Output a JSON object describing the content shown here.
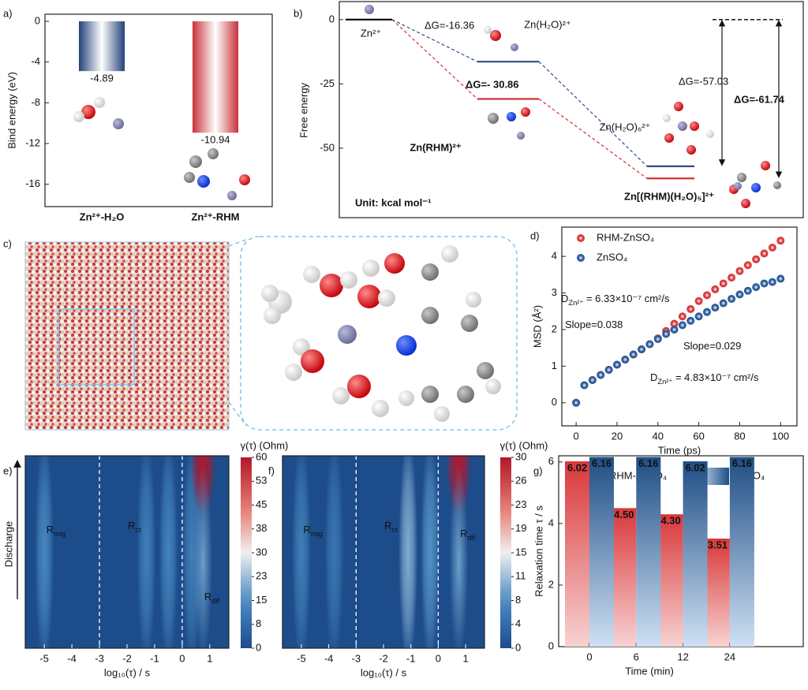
{
  "panel_labels": [
    "a)",
    "b)",
    "c)",
    "d)",
    "e)",
    "f)",
    "g)"
  ],
  "chart_data": [
    {
      "type": "bar",
      "ylabel": "Bind energy (eV)",
      "categories": [
        "Zn²⁺-H₂O",
        "Zn²⁺-RHM"
      ],
      "values": [
        -4.89,
        -10.94
      ],
      "colors": [
        "#24417a",
        "#c8323a"
      ],
      "ylim": [
        -18.2,
        0.7
      ],
      "yticks": [
        0,
        -4,
        -8,
        -12,
        -16
      ]
    },
    {
      "type": "energy",
      "ylabel": "Free energy",
      "ylim": [
        -77,
        7
      ],
      "yticks": [
        0,
        -25,
        -50
      ],
      "categories": [
        "Zn²⁺",
        "Zn(H₂O)²⁺",
        "Zn(RHM)²⁺",
        "Zn(H₂O)₆²⁺",
        "Zn[(RHM)(H₂O)₅]²⁺"
      ],
      "values": [
        0,
        -16.36,
        -30.86,
        -57.03,
        -61.74
      ],
      "colors": [
        "#000000",
        "#2b4d86",
        "#d0323a",
        "#2b4d86",
        "#d0323a"
      ],
      "annotations": [
        "ΔG=-16.36",
        "ΔG=- 30.86",
        "ΔG=-57.03",
        "ΔG=-61.74"
      ],
      "unit": "Unit: kcal mol⁻¹"
    },
    {
      "type": "scatter",
      "xlabel": "Time (ps)",
      "ylabel": "MSD (Å²)",
      "x": [
        0,
        4,
        8,
        12,
        16,
        20,
        24,
        28,
        32,
        36,
        40,
        44,
        48,
        52,
        56,
        60,
        64,
        68,
        72,
        76,
        80,
        84,
        88,
        92,
        96,
        100
      ],
      "series": [
        {
          "name": "RHM-ZnSO₄",
          "color": "#d9383a",
          "values": [
            0,
            0.48,
            0.62,
            0.76,
            0.9,
            1.04,
            1.18,
            1.32,
            1.46,
            1.6,
            1.76,
            1.96,
            2.16,
            2.36,
            2.56,
            2.78,
            2.94,
            3.1,
            3.26,
            3.42,
            3.6,
            3.76,
            3.92,
            4.08,
            4.24,
            4.43
          ]
        },
        {
          "name": "ZnSO₄",
          "color": "#2a5a9a",
          "values": [
            0,
            0.48,
            0.62,
            0.76,
            0.9,
            1.04,
            1.18,
            1.32,
            1.46,
            1.6,
            1.74,
            1.88,
            2.0,
            2.12,
            2.24,
            2.36,
            2.48,
            2.6,
            2.72,
            2.84,
            2.96,
            3.06,
            3.16,
            3.26,
            3.3,
            3.39
          ]
        }
      ],
      "xlim": [
        -7,
        108
      ],
      "ylim": [
        -0.63,
        4.8
      ],
      "xticks": [
        0,
        20,
        40,
        60,
        80,
        100
      ],
      "yticks": [
        0,
        1,
        2,
        3,
        4
      ],
      "annotations": [
        {
          "main": "D",
          "sub": "Zn²⁺",
          "rest": " = 6.33×10⁻⁷ cm²/s"
        },
        {
          "main": "Slope=0.038"
        },
        {
          "main": "Slope=0.029"
        },
        {
          "main": "D",
          "sub": "Zn²⁺",
          "rest": " = 4.83×10⁻⁷ cm²/s"
        }
      ]
    },
    {
      "type": "heatmap",
      "colorbar_label": "γ(τ) (Ohm)",
      "xlabel": "log₁₀(τ) / s",
      "ylabel": "Discharge",
      "xlim": [
        -5.69,
        1.69
      ],
      "xticks": [
        -5,
        -4,
        -3,
        -2,
        -1,
        0,
        1
      ],
      "dividers": [
        -3,
        0
      ],
      "regions": [
        {
          "main": "R",
          "sub": "mig"
        },
        {
          "main": "R",
          "sub": "ct"
        },
        {
          "main": "R",
          "sub": "dif"
        }
      ],
      "clim": [
        0,
        60
      ],
      "cticks": [
        0,
        {
          "value": 7.5,
          "label": "8"
        },
        15,
        {
          "value": 22.5,
          "label": "23"
        },
        30,
        {
          "value": 37.5,
          "label": "38"
        },
        45,
        {
          "value": 52.5,
          "label": "53"
        },
        60
      ],
      "peaks": {
        "x": [
          -5,
          -1.3,
          -0.5,
          0.35,
          0.75
        ],
        "values": [
          14,
          12,
          13,
          12,
          60
        ]
      }
    },
    {
      "type": "heatmap",
      "colorbar_label": "γ(τ) (Ohm)",
      "xlabel": "log₁₀(τ) / s",
      "xlim": [
        -5.69,
        1.69
      ],
      "xticks": [
        -5,
        -4,
        -3,
        -2,
        -1,
        0,
        1
      ],
      "dividers": [
        -3,
        0
      ],
      "regions": [
        {
          "main": "R",
          "sub": "mig"
        },
        {
          "main": "R",
          "sub": "ct"
        },
        {
          "main": "R",
          "sub": "dif"
        }
      ],
      "clim": [
        0,
        30
      ],
      "cticks": [
        0,
        {
          "value": 3.75,
          "label": "4"
        },
        {
          "value": 7.5,
          "label": "8"
        },
        {
          "value": 11.25,
          "label": "11"
        },
        15,
        {
          "value": 18.75,
          "label": "19"
        },
        {
          "value": 22.5,
          "label": "23"
        },
        {
          "value": 26.25,
          "label": "26"
        },
        30
      ],
      "peaks": {
        "x": [
          -5,
          -3.8,
          -1.1,
          -0.3,
          0.75
        ],
        "values": [
          6,
          5,
          10,
          8,
          30
        ]
      }
    },
    {
      "type": "grouped-bar",
      "xlabel": "Time (min)",
      "ylabel": "Relaxation time τ / s",
      "categories": [
        "0",
        "6",
        "12",
        "24"
      ],
      "series": [
        {
          "name": "RHM-ZnSO₄",
          "color": "#d9383a",
          "values": [
            6.02,
            4.5,
            4.3,
            3.51
          ],
          "value_labels": [
            "6.02",
            "4.50",
            "4.30",
            "3.51"
          ]
        },
        {
          "name": "ZnSO₄",
          "color": "#1f4e85",
          "values": [
            6.16,
            6.16,
            6.02,
            6.16
          ]
        }
      ],
      "ylim": [
        0,
        6.2
      ],
      "yticks": [
        0,
        2,
        4,
        6
      ]
    }
  ]
}
